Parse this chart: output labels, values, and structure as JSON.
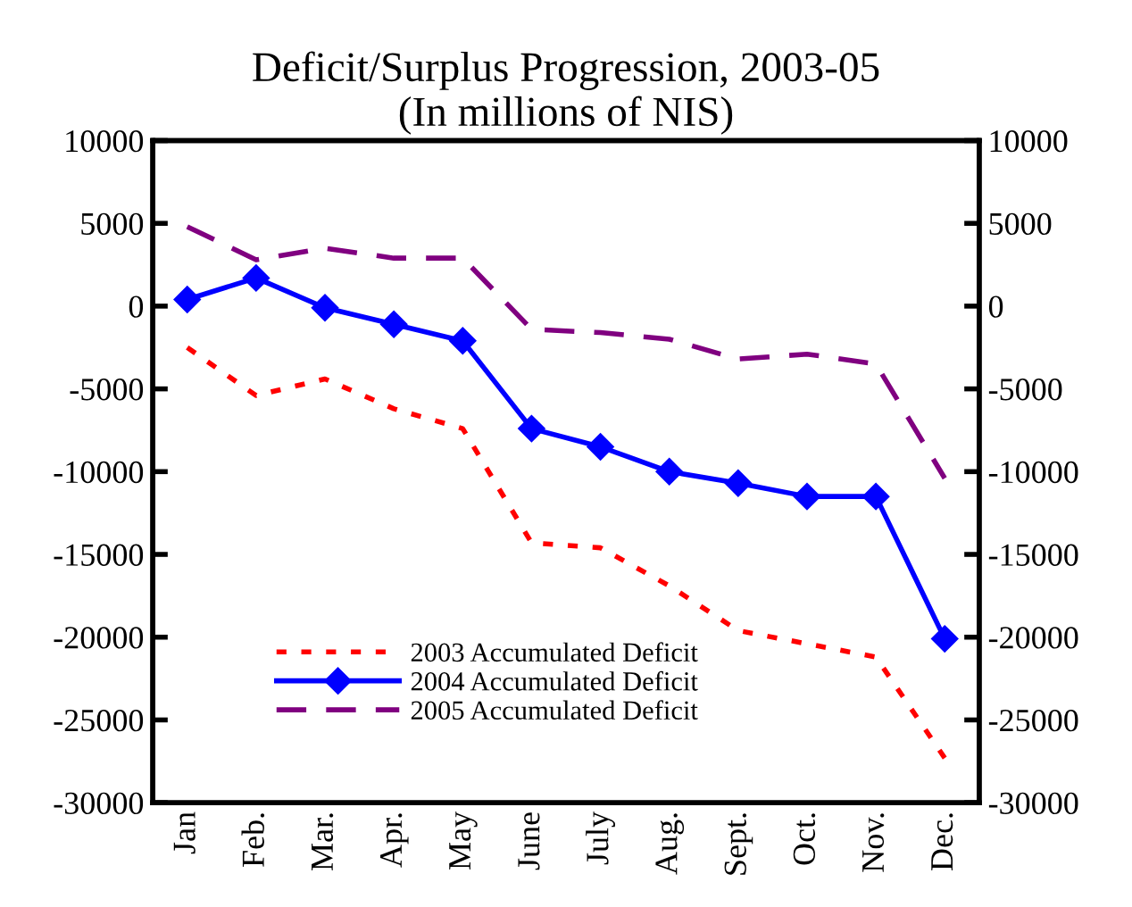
{
  "chart_data": {
    "type": "line",
    "title": "Deficit/Surplus Progression, 2003-05\n(In millions of NIS)",
    "categories": [
      "Jan",
      "Feb.",
      "Mar.",
      "Apr.",
      "May",
      "June",
      "July",
      "Aug.",
      "Sept.",
      "Oct.",
      "Nov.",
      "Dec."
    ],
    "series": [
      {
        "name": "2003 Accumulated Deficit",
        "color": "#ff0000",
        "line_style": "dotted",
        "marker": "none",
        "values": [
          -2500,
          -5400,
          -4400,
          -6200,
          -7400,
          -14300,
          -14600,
          -16900,
          -19600,
          -20400,
          -21200,
          -27300
        ]
      },
      {
        "name": "2004 Accumulated Deficit",
        "color": "#0000ff",
        "line_style": "solid",
        "marker": "diamond",
        "values": [
          400,
          1700,
          -100,
          -1100,
          -2100,
          -7400,
          -8500,
          -10000,
          -10700,
          -11500,
          -11500,
          -20100
        ]
      },
      {
        "name": "2005 Accumulated Deficit",
        "color": "#800080",
        "line_style": "dashed",
        "marker": "none",
        "values": [
          4800,
          2800,
          3500,
          2900,
          2900,
          -1400,
          -1600,
          -2000,
          -3200,
          -2900,
          -3500,
          -10400
        ]
      }
    ],
    "ylim": [
      -30000,
      10000
    ],
    "yticks": [
      -30000,
      -25000,
      -20000,
      -15000,
      -10000,
      -5000,
      0,
      5000,
      10000
    ],
    "y2lim": [
      -30000,
      10000
    ],
    "y2ticks": [
      -30000,
      -25000,
      -20000,
      -15000,
      -10000,
      -5000,
      0,
      5000,
      10000
    ],
    "grid": false,
    "legend": "bottom left"
  }
}
